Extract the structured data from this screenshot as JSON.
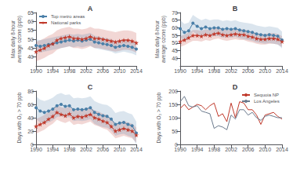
{
  "chart_data": [
    {
      "type": "line",
      "title": "A",
      "ylabel": "Max daily 8-hour\naverage ozone (ppb)",
      "x": [
        1990,
        1991,
        1992,
        1993,
        1994,
        1995,
        1996,
        1997,
        1998,
        1999,
        2000,
        2001,
        2002,
        2003,
        2004,
        2005,
        2006,
        2007,
        2008,
        2009,
        2010,
        2011,
        2012,
        2013,
        2014
      ],
      "xlim": [
        1990,
        2014
      ],
      "xticks": [
        1990,
        1994,
        1998,
        2002,
        2006,
        2010,
        2014
      ],
      "ylim": [
        35,
        65
      ],
      "yticks": [
        40,
        45,
        50,
        55,
        60,
        65
      ],
      "grid": false,
      "legend": "upper left",
      "series": [
        {
          "name": "Top metro areas",
          "color": "#4a7fa8",
          "marker": "circle",
          "values": [
            46.5,
            46.0,
            46.5,
            47.0,
            47.5,
            48.0,
            48.5,
            49.0,
            49.5,
            49.0,
            49.5,
            49.0,
            49.5,
            50.0,
            48.5,
            48.0,
            47.5,
            47.0,
            46.5,
            45.5,
            46.0,
            46.5,
            46.0,
            45.5,
            44.5
          ],
          "lo": [
            43.0,
            42.5,
            43.0,
            43.5,
            44.0,
            44.5,
            45.0,
            45.5,
            46.0,
            45.5,
            46.0,
            45.5,
            46.0,
            46.5,
            45.0,
            44.5,
            44.0,
            43.5,
            43.0,
            42.0,
            42.5,
            43.0,
            42.5,
            42.0,
            41.0
          ],
          "hi": [
            50.0,
            49.5,
            50.0,
            50.5,
            51.0,
            51.5,
            52.0,
            52.5,
            53.0,
            52.5,
            53.0,
            52.5,
            53.0,
            53.5,
            52.0,
            51.5,
            51.0,
            50.5,
            50.0,
            49.0,
            49.5,
            50.0,
            49.5,
            49.0,
            48.0
          ]
        },
        {
          "name": "National parks",
          "color": "#c0392b",
          "marker": "star",
          "values": [
            43.0,
            44.0,
            45.0,
            46.5,
            47.5,
            49.5,
            50.5,
            51.0,
            51.5,
            50.5,
            50.5,
            50.0,
            50.5,
            51.5,
            50.5,
            50.5,
            50.0,
            49.5,
            49.0,
            48.5,
            49.0,
            49.5,
            49.5,
            49.0,
            48.0
          ],
          "lo": [
            37.5,
            38.5,
            39.5,
            41.0,
            42.0,
            44.0,
            45.0,
            45.5,
            46.0,
            45.0,
            45.0,
            44.5,
            45.0,
            46.0,
            45.0,
            45.0,
            44.5,
            44.0,
            43.5,
            43.0,
            43.5,
            44.0,
            44.0,
            43.5,
            42.5
          ],
          "hi": [
            48.5,
            49.5,
            50.5,
            52.0,
            53.0,
            55.0,
            56.0,
            56.5,
            57.0,
            56.0,
            56.0,
            55.5,
            56.0,
            57.0,
            56.0,
            56.0,
            55.5,
            55.0,
            54.5,
            54.0,
            54.5,
            55.0,
            55.0,
            54.5,
            53.5
          ]
        }
      ]
    },
    {
      "type": "line",
      "title": "B",
      "ylabel": "Max daily 8-hour\naverage ozone (ppb)",
      "x": [
        1990,
        1991,
        1992,
        1993,
        1994,
        1995,
        1996,
        1997,
        1998,
        1999,
        2000,
        2001,
        2002,
        2003,
        2004,
        2005,
        2006,
        2007,
        2008,
        2009,
        2010,
        2011,
        2012,
        2013,
        2014
      ],
      "xlim": [
        1990,
        2014
      ],
      "xticks": [
        1990,
        1994,
        1998,
        2002,
        2006,
        2010,
        2014
      ],
      "ylim": [
        35,
        70
      ],
      "yticks": [
        40,
        45,
        50,
        55,
        60,
        65,
        70
      ],
      "grid": false,
      "series": [
        {
          "color": "#4a7fa8",
          "marker": "circle",
          "values": [
            59.5,
            57.0,
            58.0,
            63.0,
            61.0,
            59.5,
            60.5,
            59.5,
            60.0,
            60.0,
            59.0,
            59.5,
            59.0,
            59.5,
            58.5,
            58.0,
            57.5,
            57.0,
            56.0,
            55.5,
            55.0,
            55.5,
            55.0,
            54.5,
            52.0
          ],
          "lo": [
            54.0,
            51.5,
            52.5,
            57.5,
            55.5,
            54.0,
            55.0,
            54.0,
            54.5,
            54.5,
            53.5,
            54.0,
            53.5,
            54.0,
            53.0,
            52.5,
            52.0,
            51.5,
            50.5,
            50.0,
            49.5,
            50.0,
            49.5,
            49.0,
            46.5
          ],
          "hi": [
            65.0,
            62.5,
            63.5,
            68.5,
            66.5,
            65.0,
            66.0,
            65.0,
            65.5,
            65.5,
            64.5,
            65.0,
            64.5,
            65.0,
            64.0,
            63.5,
            63.0,
            62.5,
            61.5,
            61.0,
            60.5,
            61.0,
            60.5,
            60.0,
            57.5
          ]
        },
        {
          "color": "#c0392b",
          "marker": "star",
          "values": [
            51.0,
            52.0,
            53.5,
            55.0,
            55.0,
            54.5,
            55.5,
            55.0,
            56.0,
            56.5,
            55.5,
            55.0,
            55.5,
            56.0,
            55.5,
            55.5,
            54.5,
            54.0,
            53.0,
            52.5,
            52.5,
            53.0,
            53.0,
            52.5,
            51.0
          ],
          "lo": [
            47.5,
            48.5,
            50.0,
            51.5,
            51.5,
            51.0,
            52.0,
            51.5,
            52.5,
            53.0,
            52.0,
            51.5,
            52.0,
            52.5,
            52.0,
            52.0,
            51.0,
            50.5,
            49.5,
            49.0,
            49.0,
            49.5,
            49.5,
            49.0,
            47.5
          ],
          "hi": [
            54.5,
            55.5,
            57.0,
            58.5,
            58.5,
            58.0,
            59.0,
            58.5,
            59.5,
            60.0,
            59.0,
            58.5,
            59.0,
            59.5,
            59.0,
            59.0,
            58.0,
            57.5,
            56.5,
            56.0,
            56.0,
            56.5,
            56.5,
            56.0,
            54.5
          ]
        }
      ]
    },
    {
      "type": "line",
      "title": "C",
      "ylabel": "Days with O₃ > 70 ppb",
      "x": [
        1990,
        1991,
        1992,
        1993,
        1994,
        1995,
        1996,
        1997,
        1998,
        1999,
        2000,
        2001,
        2002,
        2003,
        2004,
        2005,
        2006,
        2007,
        2008,
        2009,
        2010,
        2011,
        2012,
        2013,
        2014
      ],
      "xlim": [
        1990,
        2014
      ],
      "xticks": [
        1990,
        1994,
        1998,
        2002,
        2006,
        2010,
        2014
      ],
      "ylim": [
        0,
        80
      ],
      "yticks": [
        0,
        20,
        40,
        60,
        80
      ],
      "grid": false,
      "series": [
        {
          "color": "#4a7fa8",
          "marker": "circle",
          "values": [
            55.0,
            50.0,
            48.0,
            50.0,
            53.0,
            58.0,
            60.0,
            57.0,
            58.0,
            52.0,
            53.0,
            52.0,
            53.0,
            55.0,
            48.0,
            45.0,
            43.0,
            42.0,
            38.0,
            30.0,
            32.0,
            33.0,
            30.0,
            28.0,
            17.0
          ],
          "lo": [
            38.0,
            33.0,
            31.0,
            33.0,
            36.0,
            41.0,
            43.0,
            40.0,
            41.0,
            35.0,
            36.0,
            35.0,
            36.0,
            38.0,
            31.0,
            28.0,
            26.0,
            25.0,
            21.0,
            13.0,
            15.0,
            16.0,
            13.0,
            11.0,
            0.0
          ],
          "hi": [
            72.0,
            67.0,
            65.0,
            67.0,
            70.0,
            75.0,
            77.0,
            74.0,
            75.0,
            69.0,
            70.0,
            69.0,
            70.0,
            72.0,
            65.0,
            62.0,
            60.0,
            59.0,
            55.0,
            47.0,
            49.0,
            50.0,
            47.0,
            45.0,
            34.0
          ]
        },
        {
          "color": "#c0392b",
          "marker": "star",
          "values": [
            27.0,
            30.0,
            33.0,
            38.0,
            42.0,
            48.0,
            45.0,
            43.0,
            46.0,
            40.0,
            42.0,
            41.0,
            43.0,
            45.0,
            40.0,
            38.0,
            35.0,
            33.0,
            27.0,
            20.0,
            22.0,
            24.0,
            22.0,
            20.0,
            14.0
          ],
          "lo": [
            16.0,
            19.0,
            22.0,
            27.0,
            31.0,
            37.0,
            34.0,
            32.0,
            35.0,
            29.0,
            31.0,
            30.0,
            32.0,
            34.0,
            29.0,
            27.0,
            24.0,
            22.0,
            16.0,
            9.0,
            11.0,
            13.0,
            11.0,
            9.0,
            3.0
          ],
          "hi": [
            38.0,
            41.0,
            44.0,
            49.0,
            53.0,
            59.0,
            56.0,
            54.0,
            57.0,
            51.0,
            53.0,
            52.0,
            54.0,
            56.0,
            51.0,
            49.0,
            46.0,
            44.0,
            38.0,
            31.0,
            33.0,
            35.0,
            33.0,
            31.0,
            25.0
          ]
        }
      ]
    },
    {
      "type": "line",
      "title": "D",
      "ylabel": "Days with O₃ > 70 ppb",
      "x": [
        1990,
        1991,
        1992,
        1993,
        1994,
        1995,
        1996,
        1997,
        1998,
        1999,
        2000,
        2001,
        2002,
        2003,
        2004,
        2005,
        2006,
        2007,
        2008,
        2009,
        2010,
        2011,
        2012,
        2013,
        2014
      ],
      "xlim": [
        1990,
        2014
      ],
      "xticks": [
        1990,
        1994,
        1998,
        2002,
        2006,
        2010,
        2014
      ],
      "ylim": [
        0,
        200
      ],
      "yticks": [
        0,
        50,
        100,
        150,
        200
      ],
      "grid": false,
      "legend": "upper right",
      "series": [
        {
          "name": "Sequoia NP",
          "color": "#c0392b",
          "values": [
            135,
            150,
            130,
            140,
            150,
            145,
            130,
            145,
            155,
            105,
            115,
            85,
            155,
            100,
            160,
            155,
            130,
            130,
            110,
            75,
            110,
            115,
            120,
            105,
            95
          ]
        },
        {
          "name": "Los Angeles",
          "color": "#6b7a8d",
          "values": [
            160,
            180,
            145,
            140,
            145,
            125,
            120,
            115,
            60,
            70,
            65,
            55,
            110,
            95,
            130,
            130,
            110,
            120,
            100,
            90,
            105,
            110,
            105,
            100,
            100
          ]
        }
      ]
    }
  ]
}
